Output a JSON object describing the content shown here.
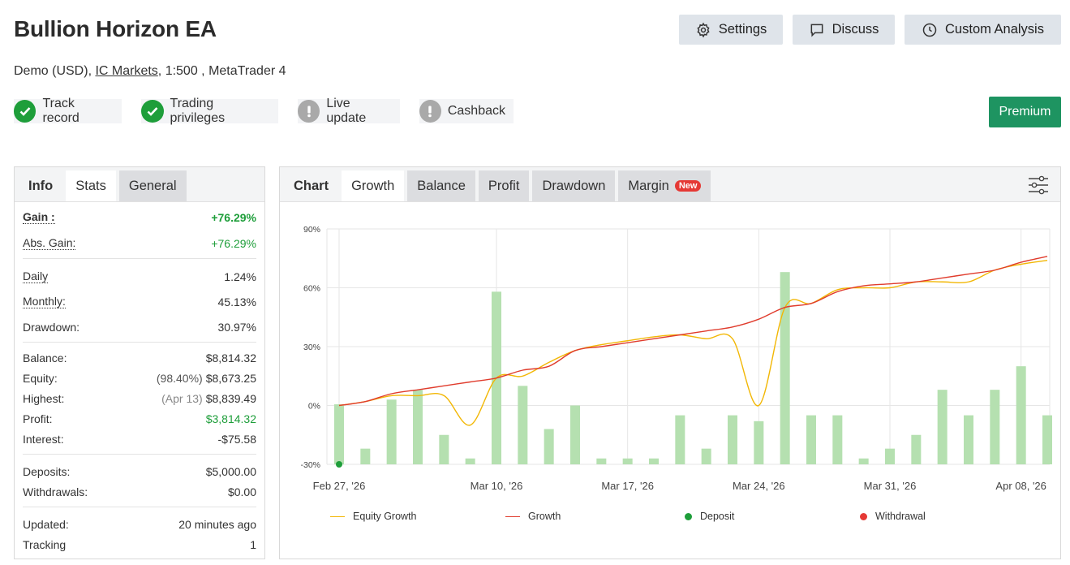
{
  "header": {
    "title": "Bullion Horizon EA",
    "subtitle_prefix": "Demo (USD), ",
    "broker_link": "IC Markets",
    "subtitle_suffix": ", 1:500 , MetaTrader 4",
    "buttons": {
      "settings": "Settings",
      "discuss": "Discuss",
      "analysis": "Custom Analysis"
    },
    "premium": "Premium"
  },
  "badges": [
    {
      "label": "Track record",
      "status": "ok"
    },
    {
      "label": "Trading privileges",
      "status": "ok"
    },
    {
      "label": "Live update",
      "status": "warn"
    },
    {
      "label": "Cashback",
      "status": "warn"
    }
  ],
  "left_tabs": {
    "info": "Info",
    "stats": "Stats",
    "general": "General"
  },
  "stats": {
    "gain_label": "Gain :",
    "gain_value": "+76.29%",
    "abs_gain_label": "Abs. Gain:",
    "abs_gain_value": "+76.29%",
    "daily_label": "Daily",
    "daily_value": "1.24%",
    "monthly_label": "Monthly:",
    "monthly_value": "45.13%",
    "drawdown_label": "Drawdown:",
    "drawdown_value": "30.97%",
    "balance_label": "Balance:",
    "balance_value": "$8,814.32",
    "equity_label": "Equity:",
    "equity_pct": "(98.40%)",
    "equity_value": "$8,673.25",
    "highest_label": "Highest:",
    "highest_date": "(Apr 13)",
    "highest_value": "$8,839.49",
    "profit_label": "Profit:",
    "profit_value": "$3,814.32",
    "interest_label": "Interest:",
    "interest_value": "-$75.58",
    "deposits_label": "Deposits:",
    "deposits_value": "$5,000.00",
    "withdrawals_label": "Withdrawals:",
    "withdrawals_value": "$0.00",
    "updated_label": "Updated:",
    "updated_value": "20 minutes ago",
    "tracking_label": "Tracking",
    "tracking_value": "1"
  },
  "chart_tabs": {
    "chart": "Chart",
    "growth": "Growth",
    "balance": "Balance",
    "profit": "Profit",
    "drawdown": "Drawdown",
    "margin": "Margin",
    "new_badge": "New"
  },
  "colors": {
    "equity": "#f2b705",
    "growth": "#e03c2d",
    "bars": "#b5e0b0",
    "deposit": "#1e9e3a",
    "withdrawal": "#e53935"
  },
  "chart_data": {
    "type": "line",
    "ylim": [
      -30,
      90
    ],
    "yticks": [
      "90%",
      "60%",
      "30%",
      "0%",
      "-30%"
    ],
    "ytick_values": [
      90,
      60,
      30,
      0,
      -30
    ],
    "xtick_labels": [
      "Feb 27, '26",
      "Mar 10, '26",
      "Mar 17, '26",
      "Mar 24, '26",
      "Mar 31, '26",
      "Apr 08, '26"
    ],
    "xtick_index": [
      0,
      6,
      11,
      16,
      21,
      26
    ],
    "bar_values": [
      0.6,
      -22,
      3,
      8,
      -15,
      -27,
      58,
      10,
      -12,
      0,
      -27,
      -27,
      -27,
      -5,
      -22,
      -5,
      -8,
      68,
      -5,
      -5,
      -27,
      -22,
      -15,
      8,
      -5,
      8,
      20,
      -5
    ],
    "series": [
      {
        "name": "Equity Growth",
        "values": [
          0,
          2,
          5,
          5,
          5,
          -10,
          14,
          15,
          22,
          28,
          31,
          33,
          35,
          36,
          34,
          34,
          0,
          50,
          52,
          59,
          60,
          60,
          63,
          63,
          63,
          69,
          72,
          74
        ]
      },
      {
        "name": "Growth",
        "values": [
          0,
          2,
          6,
          8,
          10,
          12,
          14,
          18,
          20,
          28,
          30,
          32,
          34,
          36,
          38,
          40,
          44,
          50,
          52,
          58,
          61,
          62,
          63,
          65,
          67,
          69,
          73,
          76
        ]
      }
    ],
    "deposit": [
      {
        "x": 0,
        "y": -30
      }
    ],
    "legend": [
      "Equity Growth",
      "Growth",
      "Deposit",
      "Withdrawal"
    ],
    "legend_position": "bottom",
    "grid": true
  }
}
